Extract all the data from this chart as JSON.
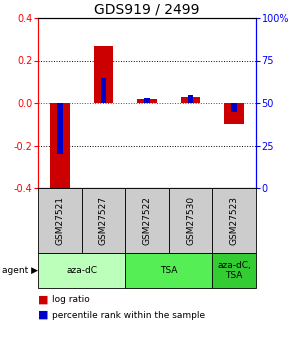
{
  "title": "GDS919 / 2499",
  "samples": [
    "GSM27521",
    "GSM27527",
    "GSM27522",
    "GSM27530",
    "GSM27523"
  ],
  "log_ratios": [
    -0.42,
    0.27,
    0.02,
    0.03,
    -0.1
  ],
  "percentile_ranks": [
    20,
    65,
    53,
    55,
    45
  ],
  "ylim_left": [
    -0.4,
    0.4
  ],
  "ylim_right": [
    0,
    100
  ],
  "yticks_left": [
    -0.4,
    -0.2,
    0.0,
    0.2,
    0.4
  ],
  "yticks_right": [
    0,
    25,
    50,
    75,
    100
  ],
  "groups": [
    {
      "label": "aza-dC",
      "color": "#bbffbb",
      "span": [
        0,
        2
      ]
    },
    {
      "label": "TSA",
      "color": "#55ee55",
      "span": [
        2,
        4
      ]
    },
    {
      "label": "aza-dC,\nTSA",
      "color": "#33cc33",
      "span": [
        4,
        5
      ]
    }
  ],
  "bar_color_red": "#cc0000",
  "bar_color_blue": "#0000cc",
  "sample_bg": "#cccccc",
  "title_fontsize": 10,
  "tick_fontsize": 7,
  "legend_fontsize": 6.5,
  "bar_width": 0.45,
  "pct_bar_width": 0.13
}
